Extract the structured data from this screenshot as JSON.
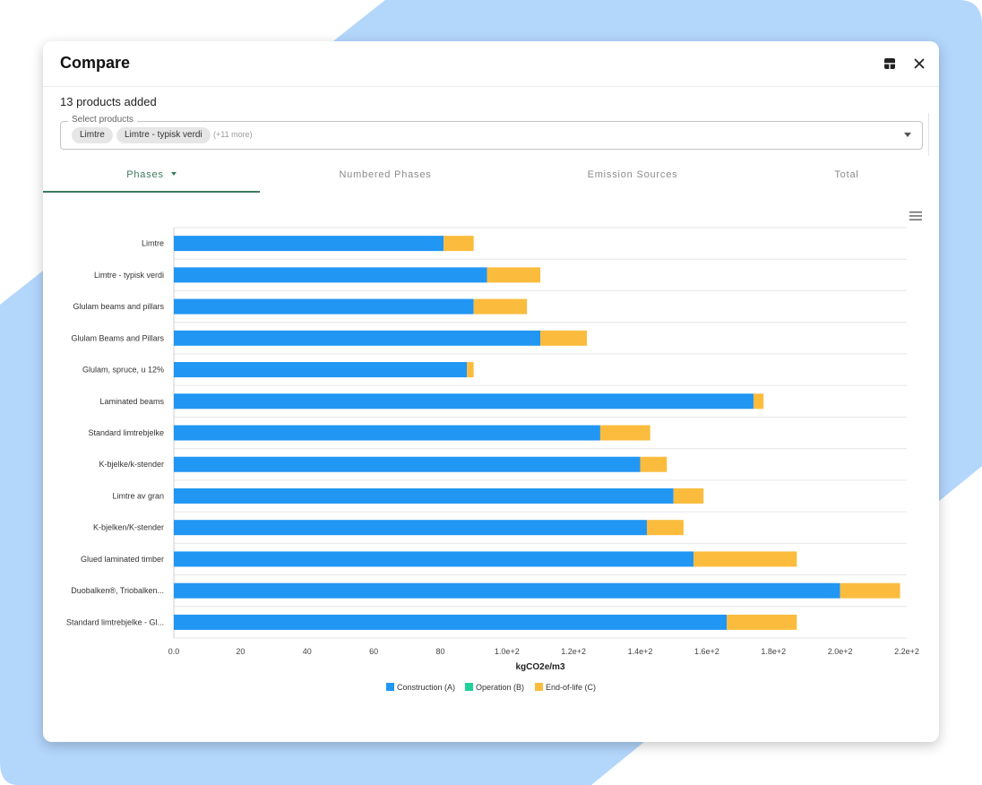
{
  "modal": {
    "title": "Compare",
    "count_text": "13 products added"
  },
  "select": {
    "label": "Select products",
    "chips": [
      "Limtre",
      "Limtre - typisk verdi"
    ],
    "more_text": "(+11 more)"
  },
  "tabs": [
    "Phases",
    "Numbered Phases",
    "Emission Sources",
    "Total"
  ],
  "icons": {
    "layout": "layout-icon",
    "close": "close-icon",
    "menu": "hamburger-menu-icon",
    "dropdown": "chevron-down-icon"
  },
  "colors": {
    "construction": "#2196f3",
    "operation": "#1fd19a",
    "end_of_life": "#fbbc3e",
    "accent": "#3d7a5e",
    "background_shape": "#b3d6fb"
  },
  "chart_data": {
    "type": "bar",
    "orientation": "horizontal",
    "stacked": true,
    "categories": [
      "Limtre",
      "Limtre - typisk verdi",
      "Glulam beams and pillars",
      "Glulam Beams and Pillars",
      "Glulam, spruce, u 12%",
      "Laminated beams",
      "Standard limtrebjelke",
      "K-bjelke/k-stender",
      "Limtre av gran",
      "K-bjelken/K-stender",
      "Glued laminated timber",
      "Duobalken®, Triobalken...",
      "Standard limtrebjelke - Gl..."
    ],
    "series": [
      {
        "name": "Construction (A)",
        "values": [
          81,
          94,
          90,
          110,
          88,
          174,
          128,
          140,
          150,
          142,
          156,
          200,
          166
        ]
      },
      {
        "name": "Operation (B)",
        "values": [
          0,
          0,
          0,
          0,
          0,
          0,
          0,
          0,
          0,
          0,
          0,
          0,
          0
        ]
      },
      {
        "name": "End-of-life (C)",
        "values": [
          9,
          16,
          16,
          14,
          2,
          3,
          15,
          8,
          9,
          11,
          31,
          18,
          21
        ]
      }
    ],
    "xlabel": "kgCO2e/m3",
    "xlim": [
      0,
      220
    ],
    "xticks": [
      0,
      20,
      40,
      60,
      80,
      100,
      120,
      140,
      160,
      180,
      200,
      220
    ],
    "xtick_labels": [
      "0.0",
      "20",
      "40",
      "60",
      "80",
      "1.0e+2",
      "1.2e+2",
      "1.4e+2",
      "1.6e+2",
      "1.8e+2",
      "2.0e+2",
      "2.2e+2"
    ],
    "grid": true,
    "legend_position": "bottom-center"
  }
}
